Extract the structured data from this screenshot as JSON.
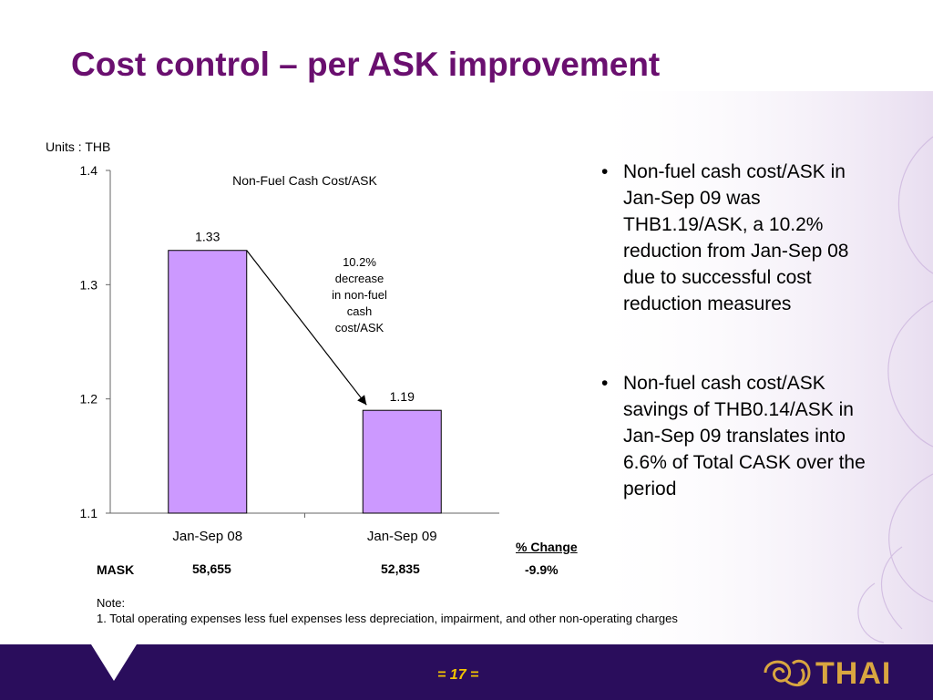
{
  "slide": {
    "title": "Cost control – per ASK improvement",
    "units": "Units : THB",
    "page_number": "= 17 =",
    "logo_text": "THAI"
  },
  "chart_data": {
    "type": "bar",
    "title": "Non-Fuel Cash Cost/ASK",
    "categories": [
      "Jan-Sep 08",
      "Jan-Sep 09"
    ],
    "values": [
      1.33,
      1.19
    ],
    "data_labels": [
      "1.33",
      "1.19"
    ],
    "ylim": [
      1.1,
      1.4
    ],
    "yticks": [
      "1.1",
      "1.2",
      "1.3",
      "1.4"
    ],
    "ytick_values": [
      1.1,
      1.2,
      1.3,
      1.4
    ],
    "bar_color": "#cc99ff",
    "annotation": [
      "10.2%",
      "decrease",
      "in non-fuel",
      "cash",
      "cost/ASK"
    ],
    "grid": false,
    "legend": "none"
  },
  "mask_row": {
    "label": "MASK",
    "values": [
      "58,655",
      "52,835"
    ],
    "pct_change_header": "% Change",
    "pct_change": "-9.9%"
  },
  "bullets": [
    "Non-fuel cash cost/ASK in Jan-Sep 09 was THB1.19/ASK, a 10.2% reduction from Jan-Sep 08 due to successful cost reduction measures",
    "Non-fuel cash cost/ASK savings of THB0.14/ASK in Jan-Sep 09 translates into 6.6% of Total CASK over the period"
  ],
  "note": {
    "heading": "Note:",
    "line1": "1. Total operating expenses less fuel expenses less depreciation, impairment, and other non-operating charges"
  },
  "colors": {
    "title": "#6a0f6f",
    "footer": "#2a0d5c",
    "page_number": "#f3c400",
    "logo": "#d9a640"
  }
}
